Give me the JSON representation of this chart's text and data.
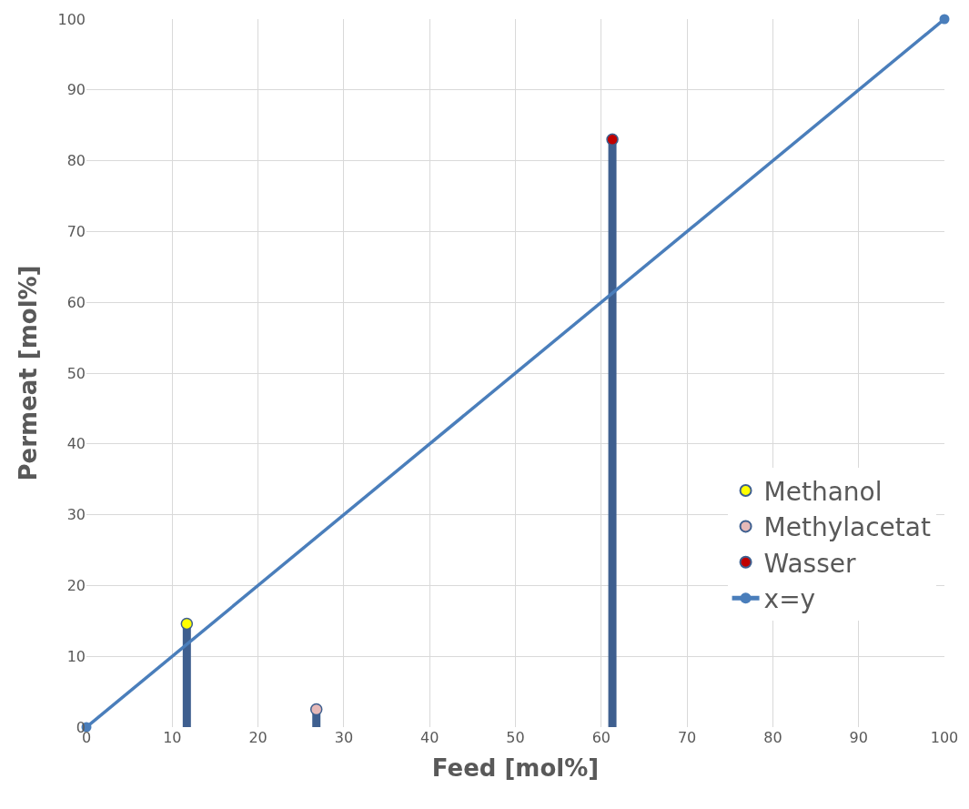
{
  "chart_data": {
    "type": "scatter",
    "xlabel": "Feed [mol%]",
    "ylabel": "Permeat [mol%]",
    "xlim": [
      0,
      100
    ],
    "ylim": [
      0,
      100
    ],
    "xticks": [
      0,
      10,
      20,
      30,
      40,
      50,
      60,
      70,
      80,
      90,
      100
    ],
    "yticks": [
      0,
      10,
      20,
      30,
      40,
      50,
      60,
      70,
      80,
      90,
      100
    ],
    "grid": true,
    "legend": "right",
    "marker": "circle",
    "series": [
      {
        "name": "Methanol",
        "color": "#ffff00",
        "x": [
          11.7
        ],
        "values": [
          14.6
        ],
        "errors": [
          [
            14.6,
            0
          ]
        ]
      },
      {
        "name": "Methylacetat",
        "color": "#e6b9b8",
        "x": [
          26.8
        ],
        "values": [
          2.5
        ],
        "errors": [
          [
            2.5,
            0
          ]
        ]
      },
      {
        "name": "Wasser",
        "color": "#c00000",
        "x": [
          61.3
        ],
        "values": [
          83.0
        ],
        "errors": [
          [
            83.0,
            0
          ]
        ]
      },
      {
        "name": "x=y",
        "type": "line",
        "color": "#4a7ebb",
        "x": [
          0,
          100
        ],
        "values": [
          0,
          100
        ]
      }
    ]
  }
}
